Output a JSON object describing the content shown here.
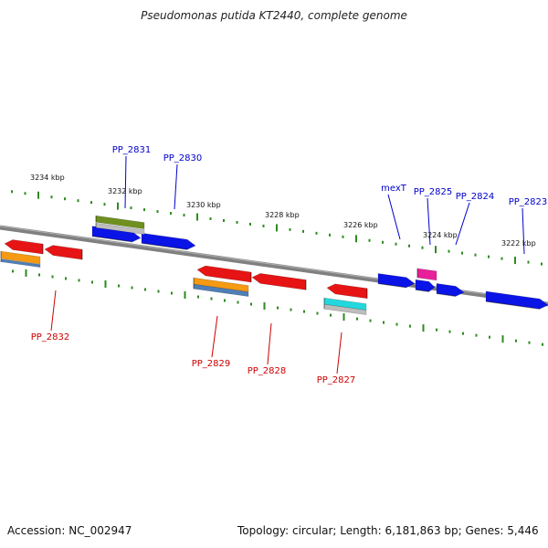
{
  "title": "Pseudomonas putida KT2440, complete genome",
  "footer": {
    "accession": "Accession: NC_002947",
    "summary": "Topology: circular; Length: 6,181,863 bp; Genes: 5,446"
  },
  "colors": {
    "tick": "#2e8b1f",
    "backbone": "#808080",
    "plus_label": "#0000cc",
    "minus_label": "#cc0000",
    "blue": "#0a14e6",
    "red": "#e61414",
    "orange": "#f59a12",
    "olive": "#6f8f1e",
    "cyan": "#22d8dc",
    "magenta": "#e8209a",
    "steel": "#4f7fb8",
    "gray": "#bdbdbd"
  },
  "ticks": {
    "upper_labels": [
      "3234 kbp",
      "3232 kbp",
      "3230 kbp",
      "3228 kbp",
      "3226 kbp",
      "3224 kbp",
      "3222 kbp"
    ]
  },
  "genes_plus": [
    {
      "label": "PP_2831",
      "color": "olive"
    },
    {
      "label": "PP_2830",
      "color": "blue"
    },
    {
      "label": "mexT",
      "color": "blue"
    },
    {
      "label": "PP_2825",
      "color": "magenta"
    },
    {
      "label": "PP_2824",
      "color": "blue"
    },
    {
      "label": "PP_2823",
      "color": "blue"
    }
  ],
  "genes_minus": [
    {
      "label": "PP_2832",
      "color": "red"
    },
    {
      "label": "PP_2829",
      "color": "red"
    },
    {
      "label": "PP_2828",
      "color": "red"
    },
    {
      "label": "PP_2827",
      "color": "red"
    }
  ]
}
